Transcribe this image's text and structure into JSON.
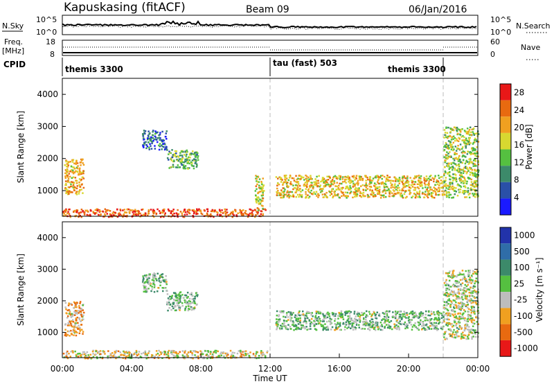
{
  "header": {
    "title": "Kapuskasing (fitACF)",
    "beam": "Beam 09",
    "date": "06/Jan/2016"
  },
  "top_strip": {
    "left_label": "N.Sky",
    "left_ticks": [
      "10^5",
      "10^0"
    ],
    "right_label": "N.Search",
    "right_ticks": [
      "10^5",
      "10^0"
    ]
  },
  "freq_strip": {
    "left_label_line1": "Freq.",
    "left_label_line2": "[MHz]",
    "left_ticks": [
      "18",
      "8"
    ],
    "right_label": "Nave",
    "right_ticks": [
      "60",
      "0"
    ]
  },
  "cpid": {
    "label": "CPID",
    "segments": [
      {
        "name": "themis 3300",
        "start_hour": 0
      },
      {
        "name": "tau (fast) 503",
        "start_hour": 12
      },
      {
        "name": "themis 3300",
        "start_hour": 22
      }
    ]
  },
  "chart_data": [
    {
      "type": "heatmap",
      "title": "",
      "ylabel": "Slant Range [km]",
      "yticks": [
        "1000",
        "2000",
        "3000",
        "4000"
      ],
      "ylim": [
        200,
        4500
      ],
      "xlim": [
        0,
        24
      ],
      "colorbar": {
        "label": "Power [dB]",
        "ticks": [
          "4",
          "8",
          "12",
          "16",
          "20",
          "24",
          "28"
        ],
        "range": [
          0,
          30
        ],
        "colors": [
          "#1a1aff",
          "#2a50a8",
          "#3c8a6a",
          "#55c040",
          "#d8d830",
          "#f0a020",
          "#e86a10",
          "#e81818"
        ]
      },
      "regions": [
        {
          "x": [
            0,
            11.8
          ],
          "range": [
            200,
            450
          ],
          "level": 0.9
        },
        {
          "x": [
            0.1,
            1.2
          ],
          "range": [
            900,
            2000
          ],
          "level": 0.7
        },
        {
          "x": [
            4.6,
            6.0
          ],
          "range": [
            2300,
            2900
          ],
          "level": 0.2
        },
        {
          "x": [
            6.0,
            7.8
          ],
          "range": [
            1700,
            2300
          ],
          "level": 0.4
        },
        {
          "x": [
            11.1,
            11.6
          ],
          "range": [
            400,
            1500
          ],
          "level": 0.6
        },
        {
          "x": [
            12.3,
            22.0
          ],
          "range": [
            800,
            1500
          ],
          "level": 0.65
        },
        {
          "x": [
            22.0,
            24.0
          ],
          "range": [
            800,
            3000
          ],
          "level": 0.5
        }
      ]
    },
    {
      "type": "heatmap",
      "title": "",
      "ylabel": "Slant Range [km]",
      "yticks": [
        "1000",
        "2000",
        "3000",
        "4000"
      ],
      "ylim": [
        200,
        4500
      ],
      "xlim": [
        0,
        24
      ],
      "xticks": [
        "00:00",
        "04:00",
        "08:00",
        "12:00",
        "16:00",
        "20:00",
        "00:00"
      ],
      "xlabel": "Time UT",
      "colorbar": {
        "label": "Velocity [m s⁻¹]",
        "ticks": [
          "1000",
          "500",
          "100",
          "25",
          "-25",
          "-100",
          "-500",
          "-1000"
        ],
        "colors": [
          "#2233aa",
          "#2f6da8",
          "#3c8a6a",
          "#55c040",
          "#bdbdbd",
          "#f0a020",
          "#e86a10",
          "#e81818"
        ]
      },
      "regions": [
        {
          "x": [
            0,
            11.8
          ],
          "range": [
            200,
            450
          ],
          "level": 0.6
        },
        {
          "x": [
            0.1,
            1.2
          ],
          "range": [
            900,
            2000
          ],
          "level": 0.7
        },
        {
          "x": [
            4.6,
            6.0
          ],
          "range": [
            2300,
            2900
          ],
          "level": 0.45
        },
        {
          "x": [
            6.0,
            7.8
          ],
          "range": [
            1700,
            2300
          ],
          "level": 0.45
        },
        {
          "x": [
            12.3,
            22.0
          ],
          "range": [
            1100,
            1700
          ],
          "level": 0.45
        },
        {
          "x": [
            22.0,
            24.0
          ],
          "range": [
            800,
            3000
          ],
          "level": 0.55
        }
      ]
    }
  ]
}
